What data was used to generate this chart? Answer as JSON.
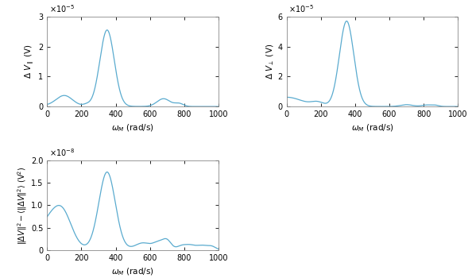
{
  "line_color": "#5aabcf",
  "line_width": 0.9,
  "xlim": [
    0,
    1000
  ],
  "xlabel": "$\\omega_M$ (rad/s)",
  "ylabel1": "$\\Delta$ $V_{\\parallel}$ (V)",
  "ylabel2": "$\\Delta$ $V_{\\perp}$ (V)",
  "ylabel3": "$\\|\\Delta V\\|^2 - \\langle\\|\\Delta V\\|^2\\rangle$ (V$^2$)",
  "panel1_ylim": [
    0,
    3e-05
  ],
  "panel2_ylim": [
    0,
    6e-05
  ],
  "panel3_ylim": [
    0,
    2e-08
  ],
  "background_color": "#ffffff",
  "tick_fontsize": 7,
  "label_fontsize": 7.5,
  "exponent_fontsize": 7
}
